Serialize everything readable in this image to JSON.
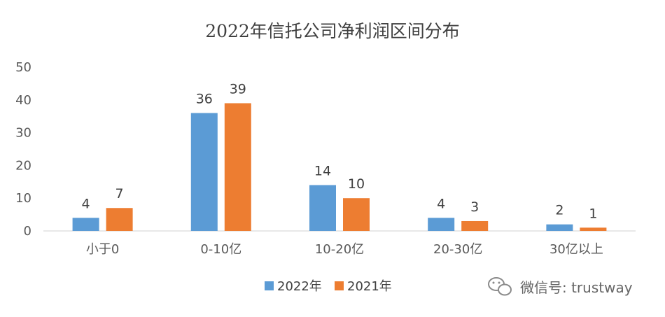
{
  "chart_data": {
    "type": "bar",
    "title": "2022年信托公司净利润区间分布",
    "categories": [
      "小于0",
      "0-10亿",
      "10-20亿",
      "20-30亿",
      "30亿以上"
    ],
    "series": [
      {
        "name": "2022年",
        "values": [
          4,
          36,
          14,
          4,
          2
        ],
        "color": "#5B9BD5"
      },
      {
        "name": "2021年",
        "values": [
          7,
          39,
          10,
          3,
          1
        ],
        "color": "#ED7D31"
      }
    ],
    "xlabel": "",
    "ylabel": "",
    "ylim": [
      0,
      50
    ],
    "yticks": [
      0,
      10,
      20,
      30,
      40,
      50
    ],
    "grid": false,
    "legend": "bottom",
    "data_labels": true
  },
  "watermark": {
    "icon": "wechat-icon",
    "text": "微信号: trustway"
  }
}
